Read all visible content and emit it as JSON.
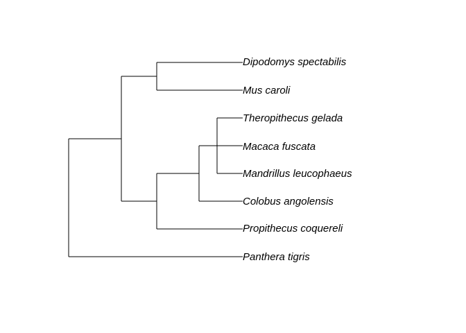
{
  "tree": {
    "tips": [
      "Dipodomys spectabilis",
      "Mus caroli",
      "Theropithecus gelada",
      "Macaca fuscata",
      "Mandrillus leucophaeus",
      "Colobus angolensis",
      "Propithecus coquereli",
      "Panthera tigris"
    ],
    "colors": {
      "line": "#000000",
      "label": "#000000"
    }
  }
}
